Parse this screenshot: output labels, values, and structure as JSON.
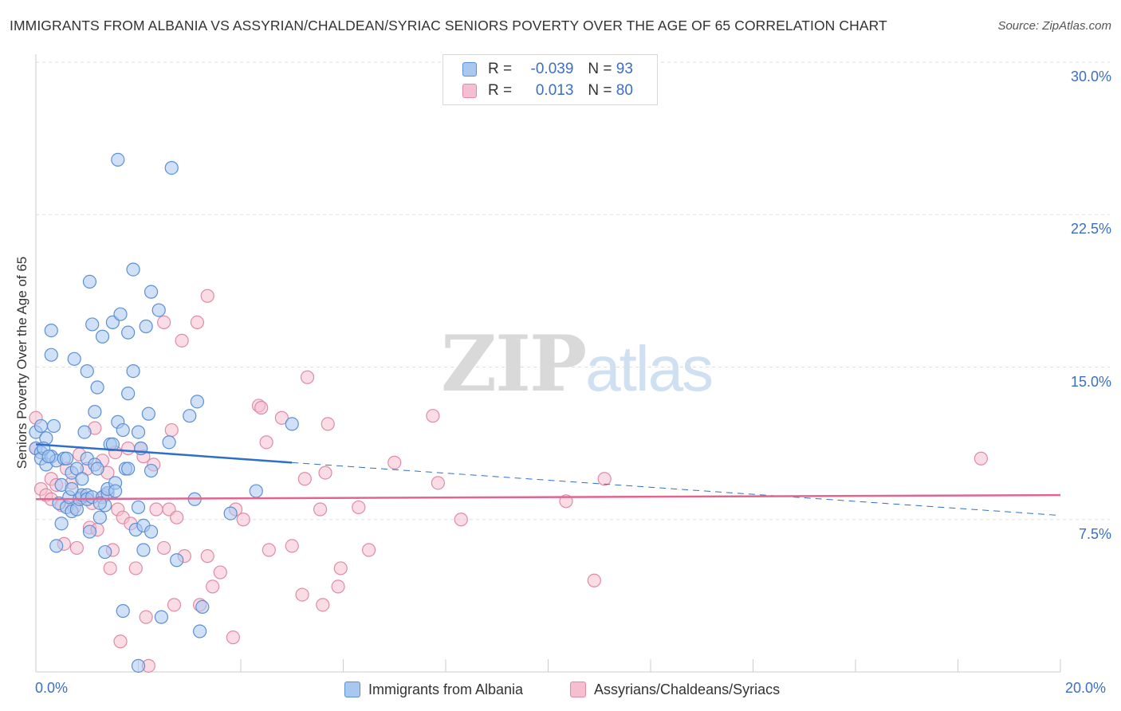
{
  "header": {
    "title": "IMMIGRANTS FROM ALBANIA VS ASSYRIAN/CHALDEAN/SYRIAC SENIORS POVERTY OVER THE AGE OF 65 CORRELATION CHART",
    "source": "Source: ZipAtlas.com"
  },
  "watermark": {
    "zip": "ZIP",
    "atlas": "atlas"
  },
  "legend": {
    "rows": [
      {
        "r_label": "R =",
        "r_value": "-0.039",
        "n_label": "N =",
        "n_value": "93"
      },
      {
        "r_label": "R =",
        "r_value": "0.013",
        "n_label": "N =",
        "n_value": "80"
      }
    ]
  },
  "colors": {
    "blue_fill": "#a9c8f0",
    "blue_stroke": "#5b8fd6",
    "blue_line": "#2f6fc8",
    "pink_fill": "#f5bfd0",
    "pink_stroke": "#e08aa8",
    "pink_line": "#e0668f",
    "grid": "#dddddd",
    "tick_text": "#3a6fc4"
  },
  "chart_data": {
    "type": "scatter",
    "title": "IMMIGRANTS FROM ALBANIA VS ASSYRIAN/CHALDEAN/SYRIAC SENIORS POVERTY OVER THE AGE OF 65 CORRELATION CHART",
    "xlabel": "",
    "ylabel": "Seniors Poverty Over the Age of 65",
    "xlim": [
      0,
      20
    ],
    "ylim": [
      0,
      30
    ],
    "x_tick_labels": [
      "0.0%",
      "20.0%"
    ],
    "y_ticks": [
      7.5,
      15.0,
      22.5,
      30.0
    ],
    "y_tick_labels": [
      "7.5%",
      "15.0%",
      "22.5%",
      "30.0%"
    ],
    "series": [
      {
        "name": "Immigrants from Albania",
        "color": "blue",
        "r": -0.039,
        "n": 93,
        "trend": {
          "x0": 0.0,
          "y0": 11.2,
          "x1": 5.0,
          "y1": 10.3,
          "dash_x1": 20.0,
          "dash_y1": 7.7
        },
        "points": [
          [
            0.0,
            11.8
          ],
          [
            0.0,
            11.0
          ],
          [
            0.1,
            12.1
          ],
          [
            0.1,
            10.8
          ],
          [
            0.1,
            10.5
          ],
          [
            0.2,
            10.2
          ],
          [
            0.2,
            11.5
          ],
          [
            0.3,
            10.6
          ],
          [
            0.3,
            16.8
          ],
          [
            0.3,
            15.6
          ],
          [
            0.35,
            12.1
          ],
          [
            0.4,
            10.4
          ],
          [
            0.4,
            6.2
          ],
          [
            0.45,
            8.3
          ],
          [
            0.5,
            7.3
          ],
          [
            0.5,
            9.2
          ],
          [
            0.55,
            10.5
          ],
          [
            0.6,
            8.1
          ],
          [
            0.65,
            8.6
          ],
          [
            0.7,
            9.8
          ],
          [
            0.7,
            7.9
          ],
          [
            0.75,
            15.4
          ],
          [
            0.8,
            8.0
          ],
          [
            0.8,
            10.0
          ],
          [
            0.85,
            8.5
          ],
          [
            0.9,
            9.5
          ],
          [
            0.9,
            8.7
          ],
          [
            0.95,
            11.8
          ],
          [
            1.0,
            10.5
          ],
          [
            1.0,
            14.8
          ],
          [
            1.0,
            8.7
          ],
          [
            1.0,
            8.5
          ],
          [
            1.05,
            19.2
          ],
          [
            1.05,
            6.9
          ],
          [
            1.1,
            17.1
          ],
          [
            1.1,
            8.6
          ],
          [
            1.15,
            12.8
          ],
          [
            1.15,
            10.2
          ],
          [
            1.2,
            10.0
          ],
          [
            1.2,
            14.0
          ],
          [
            1.25,
            7.6
          ],
          [
            1.3,
            16.5
          ],
          [
            1.3,
            8.6
          ],
          [
            1.35,
            5.9
          ],
          [
            1.35,
            8.2
          ],
          [
            1.4,
            8.8
          ],
          [
            1.4,
            9.0
          ],
          [
            1.45,
            11.2
          ],
          [
            1.5,
            17.2
          ],
          [
            1.5,
            11.2
          ],
          [
            1.55,
            9.3
          ],
          [
            1.55,
            8.9
          ],
          [
            1.6,
            25.2
          ],
          [
            1.6,
            12.3
          ],
          [
            1.65,
            17.6
          ],
          [
            1.7,
            11.9
          ],
          [
            1.7,
            3.0
          ],
          [
            1.75,
            10.0
          ],
          [
            1.8,
            10.0
          ],
          [
            1.8,
            16.7
          ],
          [
            1.8,
            13.7
          ],
          [
            1.9,
            14.8
          ],
          [
            1.9,
            19.8
          ],
          [
            1.95,
            7.0
          ],
          [
            2.0,
            11.8
          ],
          [
            2.0,
            8.1
          ],
          [
            2.0,
            0.3
          ],
          [
            2.05,
            11.0
          ],
          [
            2.1,
            6.0
          ],
          [
            2.1,
            7.2
          ],
          [
            2.15,
            17.0
          ],
          [
            2.2,
            12.7
          ],
          [
            2.25,
            9.9
          ],
          [
            2.25,
            6.9
          ],
          [
            2.25,
            18.7
          ],
          [
            2.4,
            17.8
          ],
          [
            2.45,
            2.7
          ],
          [
            2.6,
            11.3
          ],
          [
            2.65,
            24.8
          ],
          [
            2.75,
            5.5
          ],
          [
            3.0,
            12.6
          ],
          [
            3.1,
            8.5
          ],
          [
            3.15,
            13.3
          ],
          [
            3.2,
            2.0
          ],
          [
            3.25,
            3.2
          ],
          [
            3.8,
            7.8
          ],
          [
            4.3,
            8.9
          ],
          [
            5.0,
            12.2
          ],
          [
            0.15,
            11.0
          ],
          [
            0.25,
            10.6
          ],
          [
            0.6,
            10.5
          ],
          [
            1.25,
            8.3
          ],
          [
            0.7,
            9.0
          ]
        ]
      },
      {
        "name": "Assyrians/Chaldeans/Syriacs",
        "color": "pink",
        "r": 0.013,
        "n": 80,
        "trend": {
          "x0": 0.0,
          "y0": 8.5,
          "x1": 20.0,
          "y1": 8.7
        },
        "points": [
          [
            0.0,
            12.5
          ],
          [
            0.0,
            11.0
          ],
          [
            0.1,
            9.0
          ],
          [
            0.2,
            8.7
          ],
          [
            0.3,
            9.5
          ],
          [
            0.3,
            8.5
          ],
          [
            0.4,
            9.2
          ],
          [
            0.5,
            8.2
          ],
          [
            0.55,
            6.3
          ],
          [
            0.6,
            10.0
          ],
          [
            0.7,
            9.3
          ],
          [
            0.75,
            8.1
          ],
          [
            0.8,
            6.1
          ],
          [
            0.85,
            10.7
          ],
          [
            0.9,
            8.6
          ],
          [
            1.0,
            10.0
          ],
          [
            1.05,
            7.1
          ],
          [
            1.1,
            8.3
          ],
          [
            1.15,
            12.0
          ],
          [
            1.2,
            7.0
          ],
          [
            1.3,
            10.4
          ],
          [
            1.35,
            8.7
          ],
          [
            1.4,
            9.8
          ],
          [
            1.45,
            5.1
          ],
          [
            1.5,
            6.0
          ],
          [
            1.55,
            10.8
          ],
          [
            1.6,
            8.0
          ],
          [
            1.65,
            1.5
          ],
          [
            1.7,
            7.6
          ],
          [
            1.8,
            11.0
          ],
          [
            1.85,
            7.3
          ],
          [
            1.95,
            5.1
          ],
          [
            2.05,
            11.0
          ],
          [
            2.1,
            10.6
          ],
          [
            2.15,
            2.7
          ],
          [
            2.2,
            0.3
          ],
          [
            2.3,
            10.2
          ],
          [
            2.35,
            8.0
          ],
          [
            2.5,
            6.1
          ],
          [
            2.5,
            17.2
          ],
          [
            2.6,
            8.0
          ],
          [
            2.65,
            11.9
          ],
          [
            2.7,
            3.3
          ],
          [
            2.75,
            7.6
          ],
          [
            2.85,
            16.3
          ],
          [
            2.9,
            5.7
          ],
          [
            3.15,
            17.2
          ],
          [
            3.2,
            3.3
          ],
          [
            3.35,
            18.5
          ],
          [
            3.35,
            5.7
          ],
          [
            3.45,
            4.2
          ],
          [
            3.6,
            4.9
          ],
          [
            3.85,
            1.7
          ],
          [
            3.9,
            8.0
          ],
          [
            4.05,
            7.5
          ],
          [
            4.35,
            13.1
          ],
          [
            4.4,
            13.0
          ],
          [
            4.5,
            11.3
          ],
          [
            4.55,
            6.0
          ],
          [
            4.8,
            12.5
          ],
          [
            5.0,
            6.2
          ],
          [
            5.2,
            3.8
          ],
          [
            5.25,
            9.5
          ],
          [
            5.3,
            14.5
          ],
          [
            5.55,
            8.0
          ],
          [
            5.6,
            3.3
          ],
          [
            5.65,
            9.8
          ],
          [
            5.7,
            12.2
          ],
          [
            5.9,
            4.2
          ],
          [
            5.95,
            5.1
          ],
          [
            6.3,
            8.1
          ],
          [
            6.5,
            6.0
          ],
          [
            7.0,
            10.3
          ],
          [
            7.75,
            12.6
          ],
          [
            7.85,
            9.3
          ],
          [
            8.3,
            7.5
          ],
          [
            10.35,
            8.4
          ],
          [
            10.9,
            4.5
          ],
          [
            11.1,
            9.5
          ],
          [
            18.45,
            10.5
          ]
        ]
      }
    ]
  },
  "bottom_legend": {
    "items": [
      {
        "label": "Immigrants from Albania"
      },
      {
        "label": "Assyrians/Chaldeans/Syriacs"
      }
    ]
  }
}
